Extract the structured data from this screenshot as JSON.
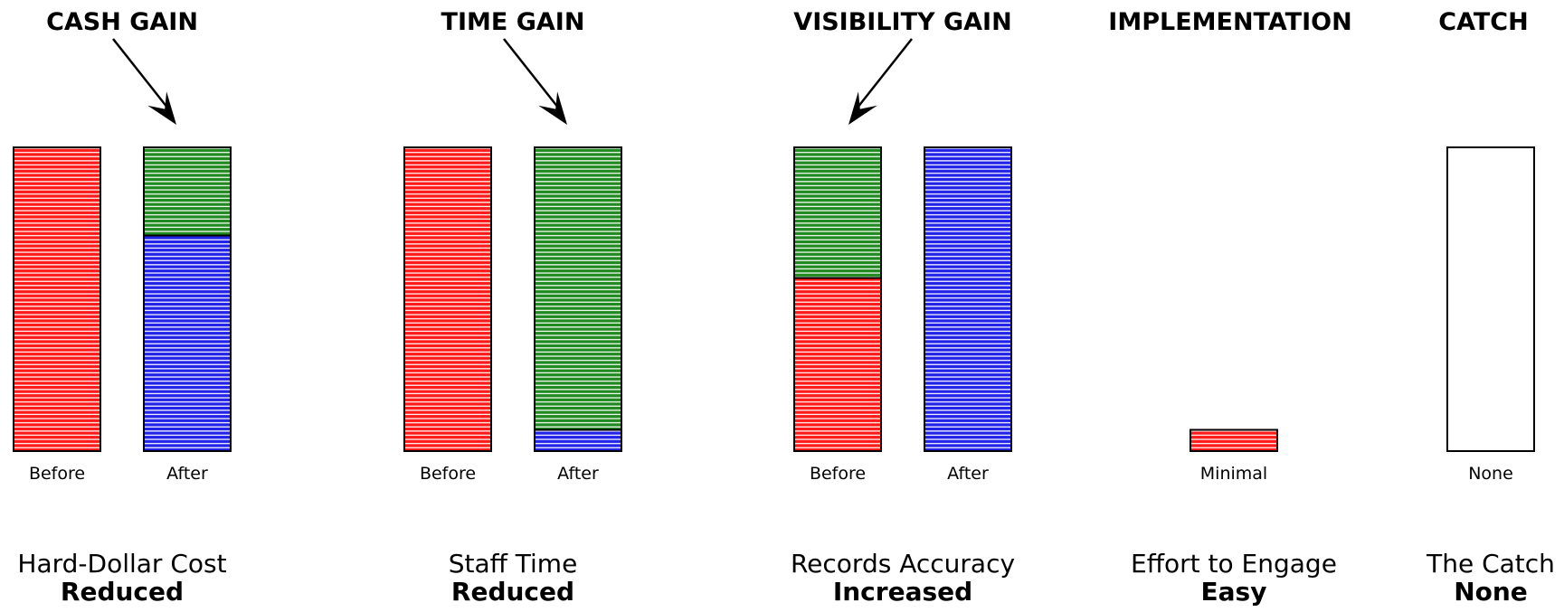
{
  "colors": {
    "red": "#ff1a1a",
    "green": "#1f8a1f",
    "blue": "#2323e8",
    "empty": "#ffffff"
  },
  "chart_data": [
    {
      "type": "bar",
      "stacked": true,
      "title": "CASH GAIN",
      "metric": "Hard-Dollar Cost",
      "result": "Reduced",
      "categories": [
        "Before",
        "After"
      ],
      "bars": [
        {
          "category": "Before",
          "segments": [
            {
              "color": "red",
              "value": 100
            }
          ]
        },
        {
          "category": "After",
          "segments": [
            {
              "color": "blue",
              "value": 71
            },
            {
              "color": "green",
              "value": 29
            }
          ]
        }
      ],
      "ylim": [
        0,
        100
      ],
      "arrow_target": "After"
    },
    {
      "type": "bar",
      "stacked": true,
      "title": "TIME GAIN",
      "metric": "Staff Time",
      "result": "Reduced",
      "categories": [
        "Before",
        "After"
      ],
      "bars": [
        {
          "category": "Before",
          "segments": [
            {
              "color": "red",
              "value": 100
            }
          ]
        },
        {
          "category": "After",
          "segments": [
            {
              "color": "blue",
              "value": 7
            },
            {
              "color": "green",
              "value": 93
            }
          ]
        }
      ],
      "ylim": [
        0,
        100
      ],
      "arrow_target": "After"
    },
    {
      "type": "bar",
      "stacked": true,
      "title": "VISIBILITY GAIN",
      "metric": "Records Accuracy",
      "result": "Increased",
      "categories": [
        "Before",
        "After"
      ],
      "bars": [
        {
          "category": "Before",
          "segments": [
            {
              "color": "red",
              "value": 57
            },
            {
              "color": "green",
              "value": 43
            }
          ]
        },
        {
          "category": "After",
          "segments": [
            {
              "color": "blue",
              "value": 100
            }
          ]
        }
      ],
      "ylim": [
        0,
        100
      ],
      "arrow_target": "Before"
    },
    {
      "type": "bar",
      "stacked": true,
      "title": "IMPLEMENTATION",
      "metric": "Effort to Engage",
      "result": "Easy",
      "categories": [
        "Minimal"
      ],
      "bars": [
        {
          "category": "Minimal",
          "segments": [
            {
              "color": "red",
              "value": 7
            }
          ]
        }
      ],
      "ylim": [
        0,
        100
      ]
    },
    {
      "type": "bar",
      "stacked": true,
      "title": "CATCH",
      "metric": "The Catch",
      "result": "None",
      "categories": [
        "None"
      ],
      "bars": [
        {
          "category": "None",
          "segments": [
            {
              "color": "empty",
              "value": 100
            }
          ]
        }
      ],
      "ylim": [
        0,
        100
      ]
    }
  ]
}
